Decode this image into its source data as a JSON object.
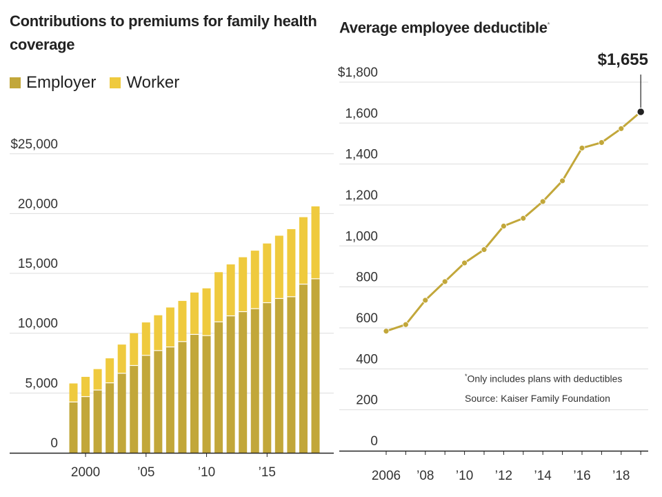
{
  "chart_data": [
    {
      "type": "bar",
      "stacked": true,
      "title": "Contributions to premiums for family health coverage",
      "legend": [
        "Employer",
        "Worker"
      ],
      "legend_placement": "top-left",
      "colors": {
        "Employer": "#c2a73a",
        "Worker": "#efca3e"
      },
      "categories": [
        1999,
        2000,
        2001,
        2002,
        2003,
        2004,
        2005,
        2006,
        2007,
        2008,
        2009,
        2010,
        2011,
        2012,
        2013,
        2014,
        2015,
        2016,
        2017,
        2018,
        2019
      ],
      "series": [
        {
          "name": "Employer",
          "values": [
            4250,
            4700,
            5250,
            5850,
            6650,
            7300,
            8150,
            8550,
            8850,
            9300,
            9900,
            9800,
            10950,
            11450,
            11800,
            12050,
            12550,
            12900,
            13050,
            14100,
            14550
          ]
        },
        {
          "name": "Worker",
          "values": [
            1550,
            1650,
            1750,
            2050,
            2400,
            2700,
            2750,
            2950,
            3300,
            3400,
            3500,
            3950,
            4150,
            4300,
            4550,
            4850,
            4950,
            5250,
            5650,
            5600,
            6050
          ]
        }
      ],
      "ylim": [
        0,
        27000
      ],
      "y_ticks": [
        {
          "value": 0,
          "label": "0"
        },
        {
          "value": 5000,
          "label": "5,000"
        },
        {
          "value": 10000,
          "label": "10,000"
        },
        {
          "value": 15000,
          "label": "15,000"
        },
        {
          "value": 20000,
          "label": "20,000"
        },
        {
          "value": 25000,
          "label": "$25,000"
        }
      ],
      "x_ticks": [
        {
          "value": 2000,
          "label": "2000"
        },
        {
          "value": 2005,
          "label": "’05"
        },
        {
          "value": 2010,
          "label": "’10"
        },
        {
          "value": 2015,
          "label": "’15"
        }
      ],
      "grid": true
    },
    {
      "type": "line",
      "title": "Average employee deductible",
      "title_marker": "*",
      "x": [
        2006,
        2007,
        2008,
        2009,
        2010,
        2011,
        2012,
        2013,
        2014,
        2015,
        2016,
        2017,
        2018,
        2019
      ],
      "values": [
        584,
        616,
        735,
        826,
        917,
        982,
        1097,
        1135,
        1217,
        1318,
        1478,
        1505,
        1573,
        1655
      ],
      "color": "#c2a73a",
      "highlight": {
        "x": 2019,
        "value": 1655,
        "label": "$1,655"
      },
      "ylim": [
        0,
        1800
      ],
      "y_ticks": [
        {
          "value": 0,
          "label": "0"
        },
        {
          "value": 200,
          "label": "200"
        },
        {
          "value": 400,
          "label": "400"
        },
        {
          "value": 600,
          "label": "600"
        },
        {
          "value": 800,
          "label": "800"
        },
        {
          "value": 1000,
          "label": "1,000"
        },
        {
          "value": 1200,
          "label": "1,200"
        },
        {
          "value": 1400,
          "label": "1,400"
        },
        {
          "value": 1600,
          "label": "1,600"
        },
        {
          "value": 1800,
          "label": "$1,800"
        }
      ],
      "x_ticks": [
        {
          "value": 2006,
          "label": "2006"
        },
        {
          "value": 2008,
          "label": "’08"
        },
        {
          "value": 2010,
          "label": "’10"
        },
        {
          "value": 2012,
          "label": "’12"
        },
        {
          "value": 2014,
          "label": "’14"
        },
        {
          "value": 2016,
          "label": "’16"
        },
        {
          "value": 2018,
          "label": "’18"
        }
      ],
      "grid": true,
      "footnote_marker": "*",
      "footnote": "Only includes plans with deductibles",
      "source": "Source: Kaiser Family Foundation"
    }
  ]
}
